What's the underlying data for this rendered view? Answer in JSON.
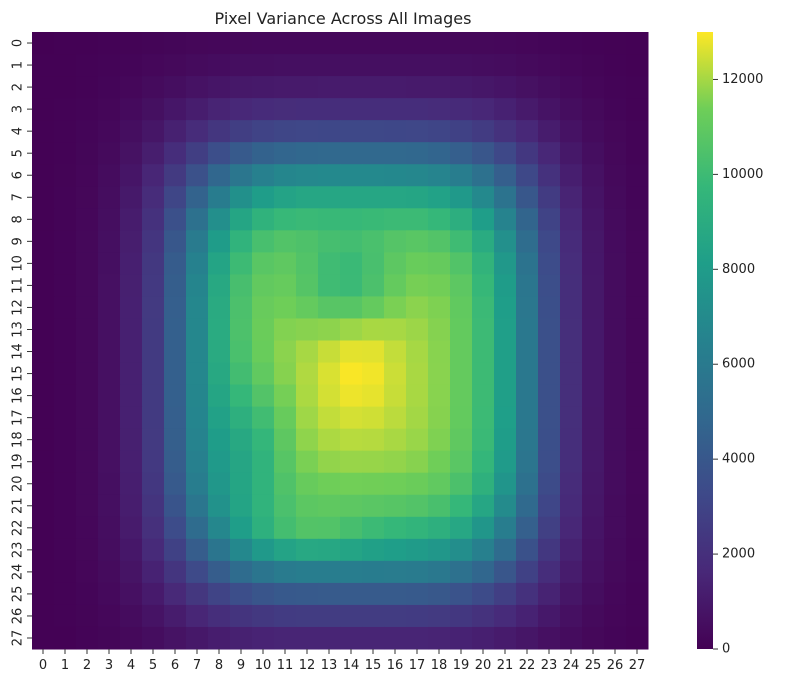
{
  "chart_data": {
    "type": "heatmap",
    "title": "Pixel Variance Across All Images",
    "xlabel": "",
    "ylabel": "",
    "x_ticks": [
      "0",
      "1",
      "2",
      "3",
      "4",
      "5",
      "6",
      "7",
      "8",
      "9",
      "10",
      "11",
      "12",
      "13",
      "14",
      "15",
      "16",
      "17",
      "18",
      "19",
      "20",
      "21",
      "22",
      "23",
      "24",
      "25",
      "26",
      "27"
    ],
    "y_ticks": [
      "0",
      "1",
      "2",
      "3",
      "4",
      "5",
      "6",
      "7",
      "8",
      "9",
      "10",
      "11",
      "12",
      "13",
      "14",
      "15",
      "16",
      "17",
      "18",
      "19",
      "20",
      "21",
      "22",
      "23",
      "24",
      "25",
      "26",
      "27"
    ],
    "colormap": "viridis",
    "vmin": 0,
    "vmax": 13000,
    "colorbar_ticks": [
      0,
      2000,
      4000,
      6000,
      8000,
      10000,
      12000
    ],
    "values_note": "z values estimated as a smooth 28x28 field (see script)"
  }
}
